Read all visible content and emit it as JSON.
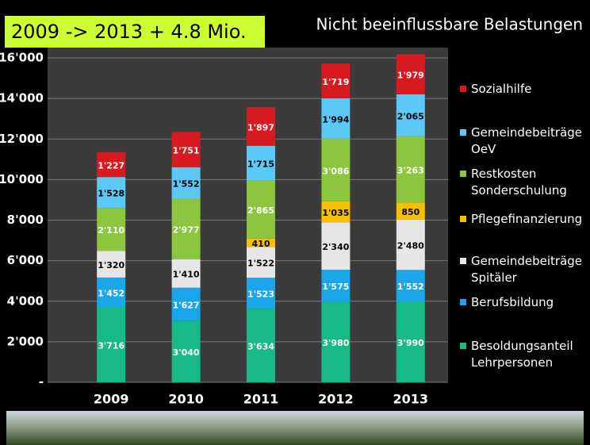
{
  "chart_data": {
    "type": "stacked_bar",
    "title": "2009 -> 2013 + 4.8 Mio.",
    "subtitle": "Nicht beeinflussbare Belastungen",
    "categories": [
      "2009",
      "2010",
      "2011",
      "2012",
      "2013"
    ],
    "ylim": [
      0,
      16000
    ],
    "yticks": [
      {
        "value": 0,
        "label": "-"
      },
      {
        "value": 2000,
        "label": "2'000"
      },
      {
        "value": 4000,
        "label": "4'000"
      },
      {
        "value": 6000,
        "label": "6'000"
      },
      {
        "value": 8000,
        "label": "8'000"
      },
      {
        "value": 10000,
        "label": "10'000"
      },
      {
        "value": 12000,
        "label": "12'000"
      },
      {
        "value": 14000,
        "label": "14'000"
      },
      {
        "value": 16000,
        "label": "16'000"
      }
    ],
    "grid": true,
    "series": [
      {
        "name": "Besoldungsanteil Lehrpersonen",
        "color": "#17b987",
        "values": [
          3716,
          3040,
          3634,
          3980,
          3990
        ],
        "value_labels": [
          "3'716",
          "3'040",
          "3'634",
          "3'980",
          "3'990"
        ]
      },
      {
        "name": "Berufsbildung",
        "color": "#1ba6ea",
        "values": [
          1452,
          1627,
          1523,
          1575,
          1552
        ],
        "value_labels": [
          "1'452",
          "1'627",
          "1'523",
          "1'575",
          "1'552"
        ]
      },
      {
        "name": "Gemeindebeiträge Spitäler",
        "color": "#e6e6e6",
        "values": [
          1320,
          1410,
          1522,
          2340,
          2480
        ],
        "value_labels": [
          "1'320",
          "1'410",
          "1'522",
          "2'340",
          "2'480"
        ]
      },
      {
        "name": "Pflegefinanzierung",
        "color": "#f6c000",
        "values": [
          null,
          null,
          410,
          1035,
          850
        ],
        "value_labels": [
          null,
          null,
          "410",
          "1'035",
          "850"
        ]
      },
      {
        "name": "Restkosten Sonderschulung",
        "color": "#8cc63e",
        "values": [
          2110,
          2977,
          2865,
          3086,
          3263
        ],
        "value_labels": [
          "2'110",
          "2'977",
          "2'865",
          "3'086",
          "3'263"
        ]
      },
      {
        "name": "Gemeindebeiträge OeV",
        "color": "#5bc8f5",
        "values": [
          1528,
          1552,
          1715,
          1994,
          2065
        ],
        "value_labels": [
          "1'528",
          "1'552",
          "1'715",
          "1'994",
          "2'065"
        ]
      },
      {
        "name": "Sozialhilfe",
        "color": "#d71920",
        "values": [
          1227,
          1751,
          1897,
          1719,
          1979
        ],
        "value_labels": [
          "1'227",
          "1'751",
          "1'897",
          "1'719",
          "1'979"
        ]
      }
    ]
  }
}
